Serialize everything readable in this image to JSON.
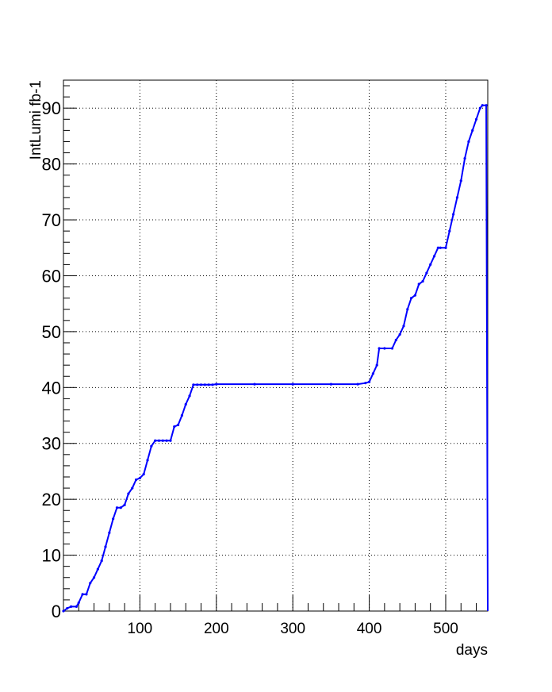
{
  "chart_data": {
    "type": "line",
    "title": "",
    "xlabel": "days",
    "ylabel": "IntLumi fb-1",
    "xlim": [
      0,
      555
    ],
    "ylim": [
      0,
      95
    ],
    "grid": true,
    "legend": "none",
    "x_ticks": [
      100,
      200,
      300,
      400,
      500
    ],
    "x_tick_labels": [
      "100",
      "200",
      "300",
      "400",
      "500"
    ],
    "y_ticks": [
      0,
      10,
      20,
      30,
      40,
      50,
      60,
      70,
      80,
      90
    ],
    "y_tick_labels": [
      "0",
      "10",
      "20",
      "30",
      "40",
      "50",
      "60",
      "70",
      "80",
      "90"
    ],
    "series_color": "#0000ff",
    "series": [
      {
        "name": "",
        "x": [
          0,
          5,
          10,
          17,
          20,
          25,
          30,
          35,
          40,
          45,
          50,
          55,
          60,
          65,
          70,
          75,
          80,
          85,
          90,
          95,
          100,
          105,
          110,
          115,
          120,
          125,
          130,
          135,
          140,
          145,
          150,
          155,
          160,
          165,
          170,
          175,
          180,
          185,
          190,
          195,
          200,
          250,
          300,
          350,
          385,
          395,
          400,
          405,
          410,
          413,
          420,
          430,
          435,
          440,
          445,
          450,
          455,
          460,
          465,
          470,
          475,
          480,
          485,
          490,
          493,
          500,
          505,
          510,
          515,
          520,
          525,
          530,
          535,
          540,
          545,
          548,
          553,
          555
        ],
        "y": [
          0,
          0.5,
          0.8,
          0.8,
          1.5,
          3,
          3,
          5,
          6,
          7.5,
          9,
          11.5,
          14,
          16.5,
          18.5,
          18.5,
          19,
          21,
          22,
          23.5,
          23.8,
          24.5,
          27,
          29.5,
          30.5,
          30.5,
          30.5,
          30.5,
          30.5,
          33,
          33.3,
          35,
          37,
          38.5,
          40.5,
          40.5,
          40.5,
          40.5,
          40.5,
          40.5,
          40.6,
          40.6,
          40.6,
          40.6,
          40.6,
          40.8,
          41,
          42.5,
          44,
          47,
          47,
          47,
          48.5,
          49.5,
          51,
          54,
          56,
          56.5,
          58.5,
          59,
          60.5,
          62,
          63.5,
          65,
          65,
          65,
          68,
          71,
          74,
          77,
          81,
          84,
          86,
          88,
          90,
          90.5,
          90.5,
          0
        ]
      }
    ]
  }
}
